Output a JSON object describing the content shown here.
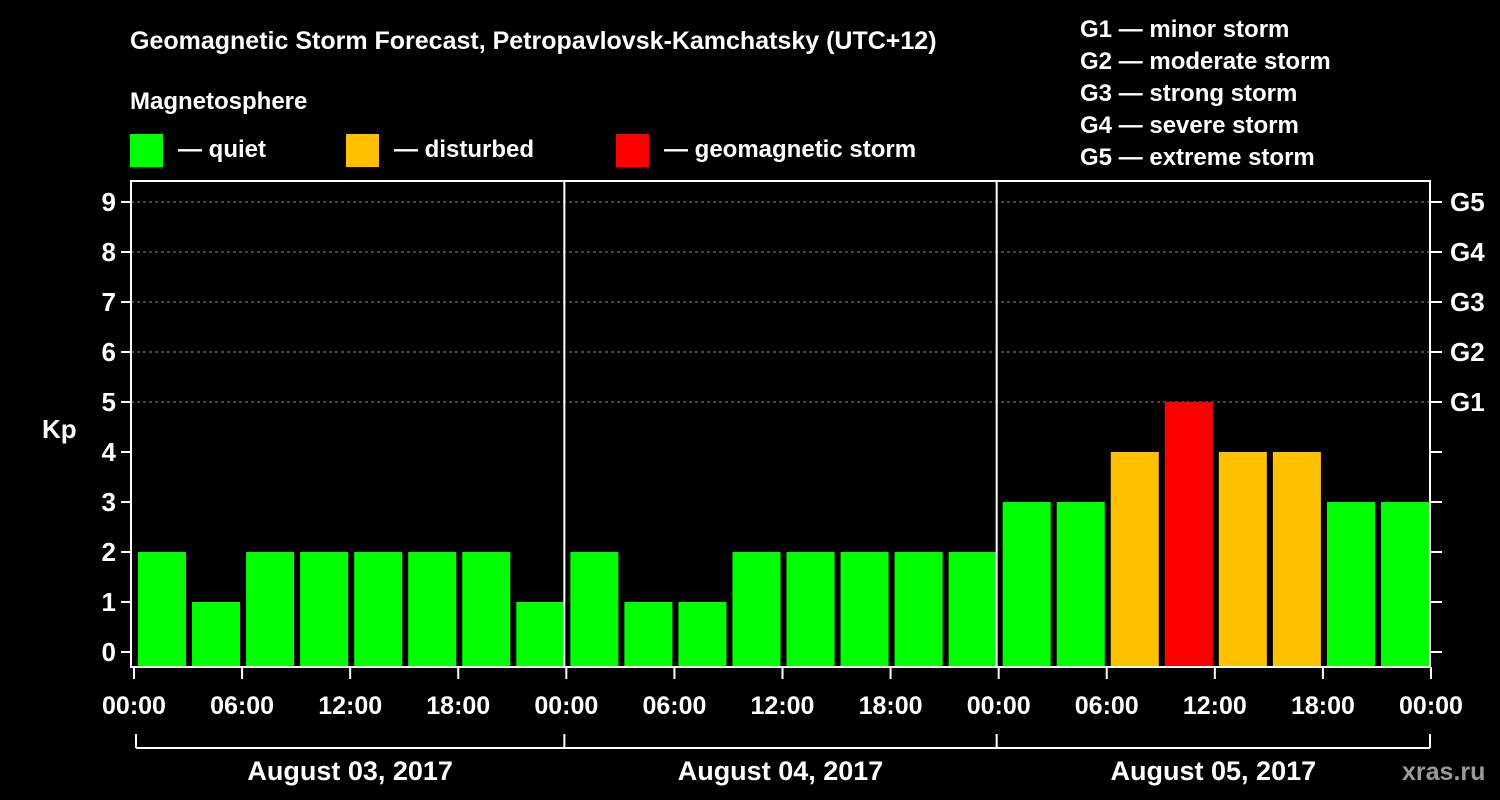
{
  "chart_data": {
    "type": "bar",
    "title": "Geomagnetic Storm Forecast, Petropavlovsk-Kamchatsky (UTC+12)",
    "ylabel": "Kp",
    "ylim": [
      0,
      9
    ],
    "yticks": [
      "0",
      "1",
      "2",
      "3",
      "4",
      "5",
      "6",
      "7",
      "8",
      "9"
    ],
    "right_ticks": [
      {
        "kp": 5,
        "label": "G1"
      },
      {
        "kp": 6,
        "label": "G2"
      },
      {
        "kp": 7,
        "label": "G3"
      },
      {
        "kp": 8,
        "label": "G4"
      },
      {
        "kp": 9,
        "label": "G5"
      }
    ],
    "storm_scale": [
      "G1 — minor storm",
      "G2 — moderate storm",
      "G3 — strong storm",
      "G4 — severe storm",
      "G5 — extreme storm"
    ],
    "legend_title": "Magnetosphere",
    "legend": [
      {
        "label": "— quiet",
        "color": "#00ff00"
      },
      {
        "label": "— disturbed",
        "color": "#ffc000"
      },
      {
        "label": "— geomagnetic storm",
        "color": "#ff0000"
      }
    ],
    "grid": true,
    "time_ticks": [
      "00:00",
      "06:00",
      "12:00",
      "18:00",
      "00:00",
      "06:00",
      "12:00",
      "18:00",
      "00:00",
      "06:00",
      "12:00",
      "18:00",
      "00:00"
    ],
    "days": [
      {
        "date": "August 03, 2017",
        "values": [
          2,
          1,
          2,
          2,
          2,
          2,
          2,
          1
        ]
      },
      {
        "date": "August 04, 2017",
        "values": [
          2,
          1,
          1,
          2,
          2,
          2,
          2,
          2
        ]
      },
      {
        "date": "August 05, 2017",
        "values": [
          3,
          3,
          4,
          5,
          4,
          4,
          3,
          3
        ]
      }
    ],
    "colors": {
      "quiet": "#00ff00",
      "disturbed": "#ffc000",
      "storm": "#ff0000"
    },
    "watermark": "xras.ru"
  }
}
